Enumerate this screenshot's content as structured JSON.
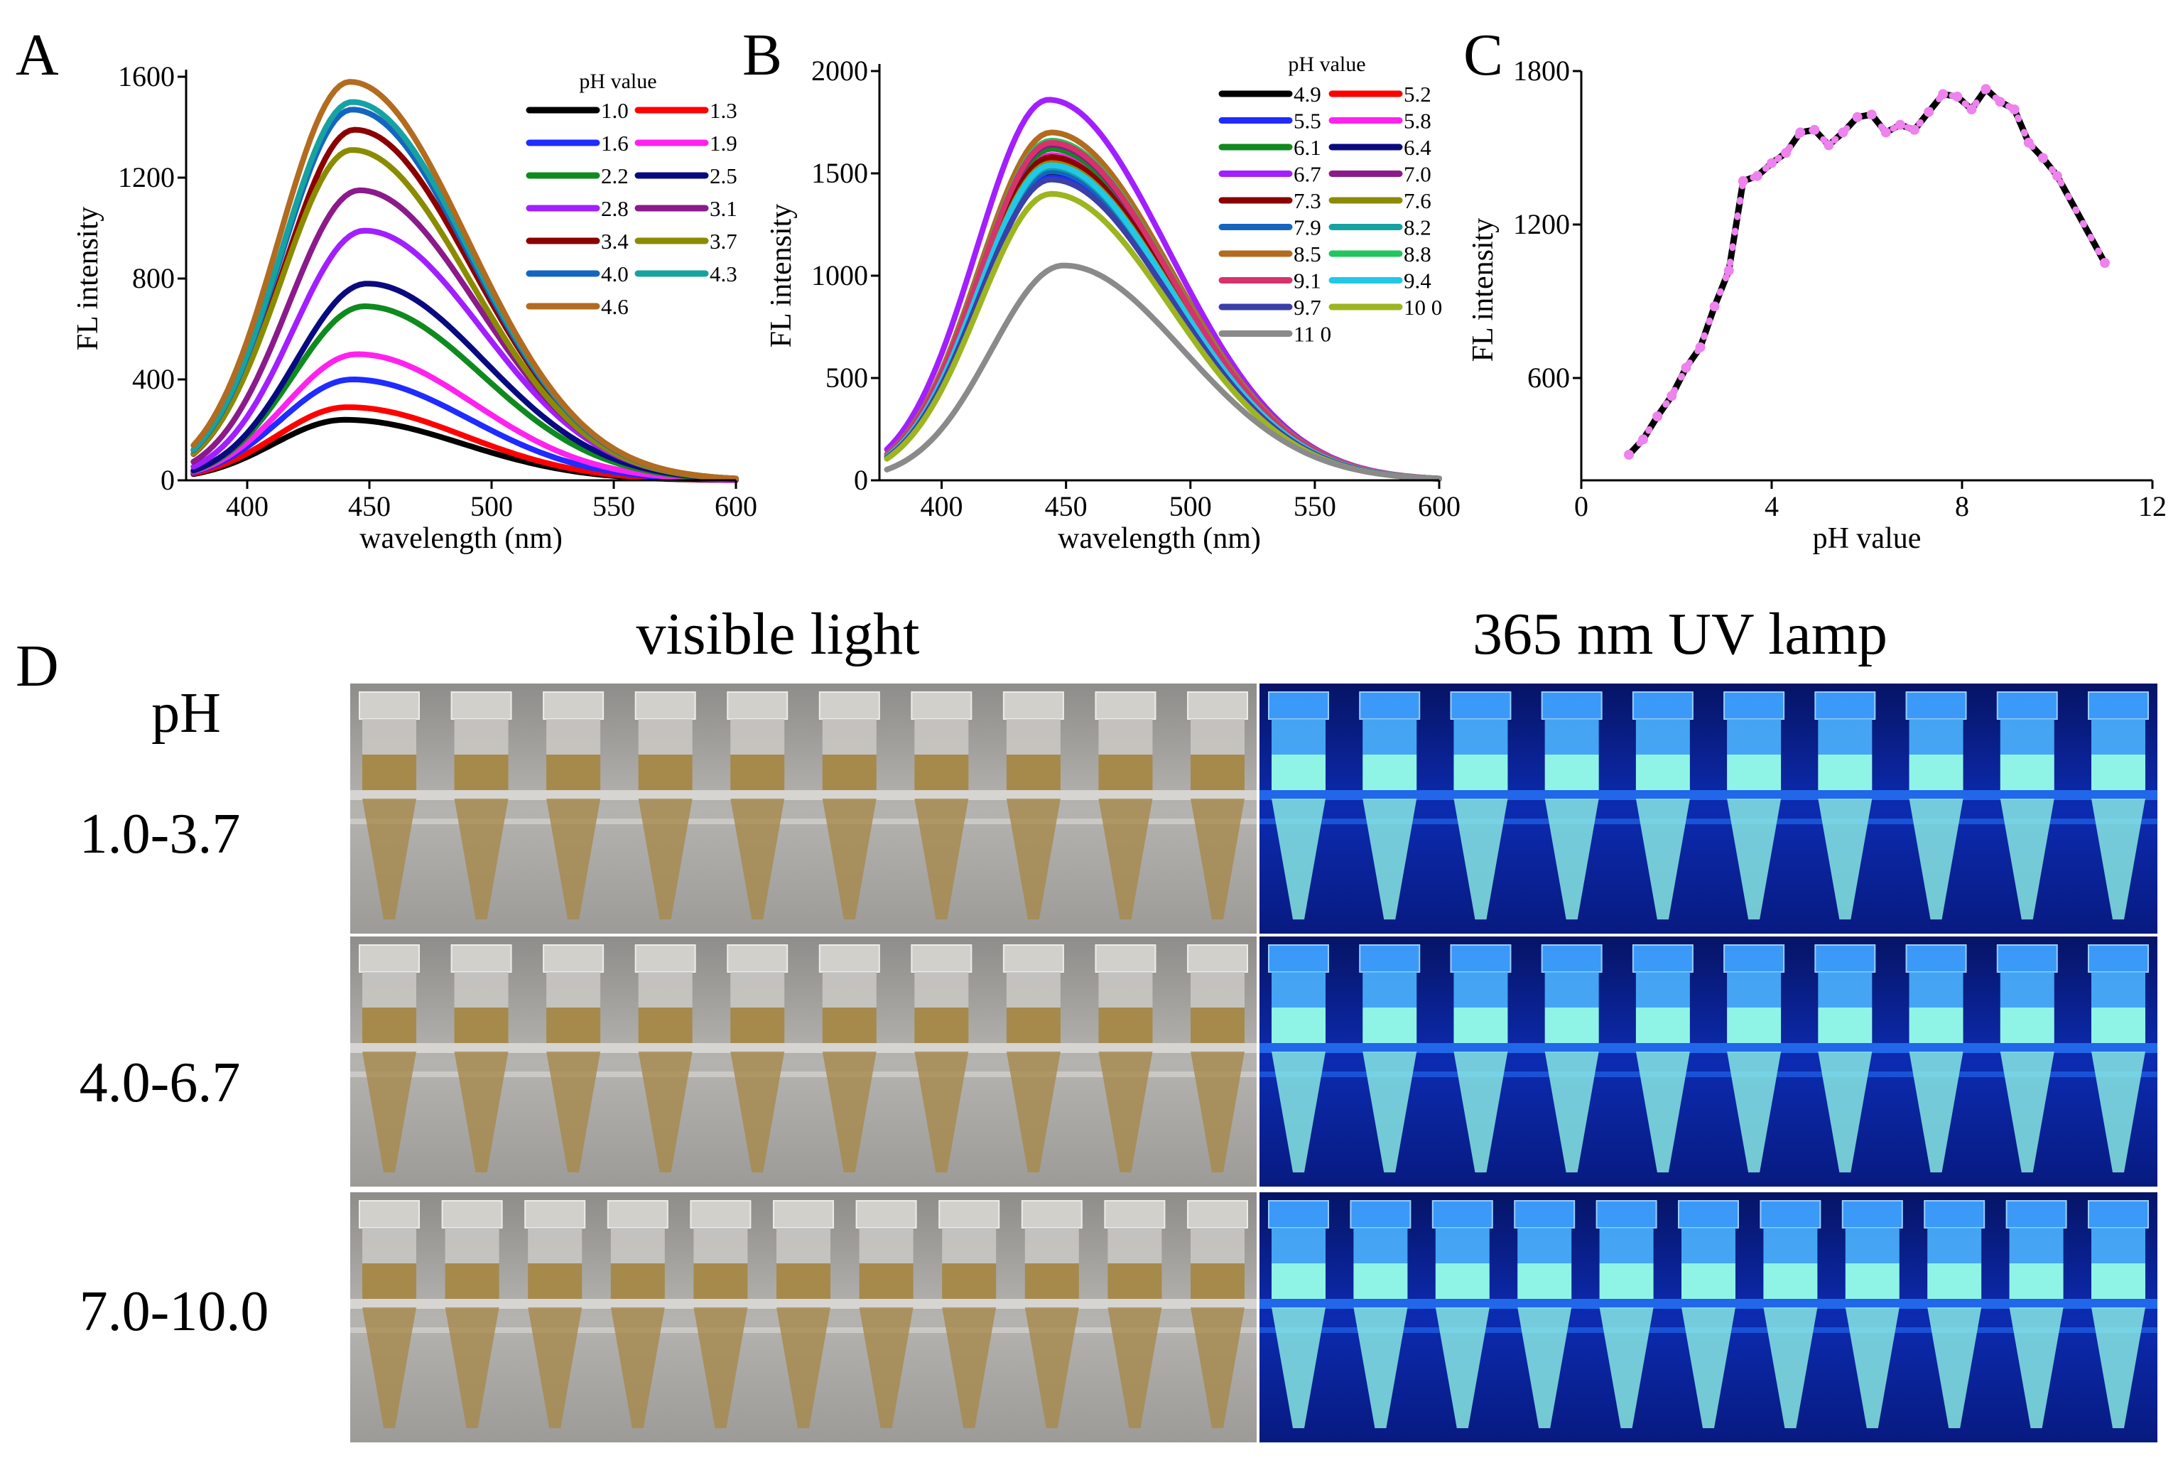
{
  "figure": {
    "panel_labels": [
      "A",
      "B",
      "C",
      "D"
    ],
    "panel_d": {
      "visible_title": "visible light",
      "uv_title": "365 nm UV lamp",
      "row_heading": "pH",
      "rows": [
        "1.0-3.7",
        "4.0-6.7",
        "7.0-10.0"
      ],
      "tubes_per_row": [
        10,
        10,
        11
      ],
      "colors": {
        "visible_bg": "#a9a7a3",
        "visible_liquid": "#a68a4c",
        "uv_bg": "#0a1f8f",
        "uv_liquid": "#8ff4e6"
      }
    }
  },
  "chart_data": [
    {
      "id": "A",
      "type": "line",
      "title": "",
      "xlabel": "wavelength (nm)",
      "ylabel": "FL intensity",
      "xlim": [
        375,
        600
      ],
      "ylim": [
        0,
        1600
      ],
      "xticks": [
        400,
        450,
        500,
        550,
        600
      ],
      "yticks": [
        0,
        400,
        800,
        1200,
        1600
      ],
      "legend_title": "pH value",
      "legend_position": "top-right",
      "series": [
        {
          "name": "1.0",
          "peak_x": 440,
          "peak": 240,
          "color": "#000000"
        },
        {
          "name": "1.3",
          "peak_x": 441,
          "peak": 290,
          "color": "#ff0000"
        },
        {
          "name": "1.6",
          "peak_x": 443,
          "peak": 400,
          "color": "#1f2bff"
        },
        {
          "name": "1.9",
          "peak_x": 445,
          "peak": 500,
          "color": "#ff22ee"
        },
        {
          "name": "2.2",
          "peak_x": 448,
          "peak": 690,
          "color": "#0f8a1f"
        },
        {
          "name": "2.5",
          "peak_x": 449,
          "peak": 780,
          "color": "#0a0a80"
        },
        {
          "name": "2.8",
          "peak_x": 448,
          "peak": 990,
          "color": "#a21fff"
        },
        {
          "name": "3.1",
          "peak_x": 446,
          "peak": 1150,
          "color": "#8b1a8b"
        },
        {
          "name": "3.4",
          "peak_x": 444,
          "peak": 1390,
          "color": "#8b0000"
        },
        {
          "name": "3.7",
          "peak_x": 443,
          "peak": 1310,
          "color": "#8b8b00"
        },
        {
          "name": "4.0",
          "peak_x": 443,
          "peak": 1470,
          "color": "#1565c0"
        },
        {
          "name": "4.3",
          "peak_x": 443,
          "peak": 1500,
          "color": "#17a2a2"
        },
        {
          "name": "4.6",
          "peak_x": 442,
          "peak": 1580,
          "color": "#b26b1f"
        }
      ]
    },
    {
      "id": "B",
      "type": "line",
      "title": "",
      "xlabel": "wavelength (nm)",
      "ylabel": "FL intensity",
      "xlim": [
        375,
        600
      ],
      "ylim": [
        0,
        2000
      ],
      "xticks": [
        400,
        450,
        500,
        550,
        600
      ],
      "yticks": [
        0,
        500,
        1000,
        1500,
        2000
      ],
      "legend_title": "pH value",
      "legend_position": "top-right",
      "series": [
        {
          "name": "4.9",
          "peak_x": 444,
          "peak": 1500,
          "color": "#000000"
        },
        {
          "name": "5.2",
          "peak_x": 444,
          "peak": 1560,
          "color": "#ff0000"
        },
        {
          "name": "5.5",
          "peak_x": 444,
          "peak": 1480,
          "color": "#1f2bff"
        },
        {
          "name": "5.8",
          "peak_x": 444,
          "peak": 1590,
          "color": "#ff22ee"
        },
        {
          "name": "6.1",
          "peak_x": 444,
          "peak": 1620,
          "color": "#0f8a1f"
        },
        {
          "name": "6.4",
          "peak_x": 444,
          "peak": 1520,
          "color": "#0a0a80"
        },
        {
          "name": "6.7",
          "peak_x": 443,
          "peak": 1860,
          "color": "#a21fff"
        },
        {
          "name": "7.0",
          "peak_x": 444,
          "peak": 1640,
          "color": "#8b1a8b"
        },
        {
          "name": "7.3",
          "peak_x": 444,
          "peak": 1580,
          "color": "#8b0000"
        },
        {
          "name": "7.6",
          "peak_x": 444,
          "peak": 1550,
          "color": "#8b8b00"
        },
        {
          "name": "7.9",
          "peak_x": 444,
          "peak": 1510,
          "color": "#1565c0"
        },
        {
          "name": "8.2",
          "peak_x": 444,
          "peak": 1530,
          "color": "#17a2a2"
        },
        {
          "name": "8.5",
          "peak_x": 444,
          "peak": 1700,
          "color": "#b26b1f"
        },
        {
          "name": "8.8",
          "peak_x": 444,
          "peak": 1660,
          "color": "#22c55e"
        },
        {
          "name": "9.1",
          "peak_x": 444,
          "peak": 1650,
          "color": "#d6336c"
        },
        {
          "name": "9.4",
          "peak_x": 444,
          "peak": 1540,
          "color": "#22c8e8"
        },
        {
          "name": "9.7",
          "peak_x": 444,
          "peak": 1470,
          "color": "#3b3fa8"
        },
        {
          "name": "10 0",
          "peak_x": 444,
          "peak": 1400,
          "color": "#9cb520"
        },
        {
          "name": "11 0",
          "peak_x": 449,
          "peak": 1050,
          "color": "#8a8a8a"
        }
      ]
    },
    {
      "id": "C",
      "type": "line",
      "title": "",
      "xlabel": "pH value",
      "ylabel": "FL intensity",
      "xlim": [
        0,
        12
      ],
      "ylim": [
        200,
        1800
      ],
      "xticks": [
        0,
        4,
        8,
        12
      ],
      "yticks": [
        600,
        1200,
        1800
      ],
      "line_color": "#000000",
      "marker_color": "#ee82ee",
      "x": [
        1.0,
        1.3,
        1.6,
        1.9,
        2.2,
        2.5,
        2.8,
        3.1,
        3.4,
        3.7,
        4.0,
        4.3,
        4.6,
        4.9,
        5.2,
        5.5,
        5.8,
        6.1,
        6.4,
        6.7,
        7.0,
        7.3,
        7.6,
        7.9,
        8.2,
        8.5,
        8.8,
        9.1,
        9.4,
        9.7,
        10.0,
        11.0
      ],
      "y": [
        300,
        360,
        450,
        530,
        640,
        720,
        880,
        1020,
        1370,
        1390,
        1440,
        1480,
        1560,
        1570,
        1510,
        1560,
        1620,
        1630,
        1560,
        1590,
        1570,
        1640,
        1710,
        1700,
        1650,
        1730,
        1680,
        1650,
        1520,
        1460,
        1390,
        1050
      ]
    }
  ]
}
